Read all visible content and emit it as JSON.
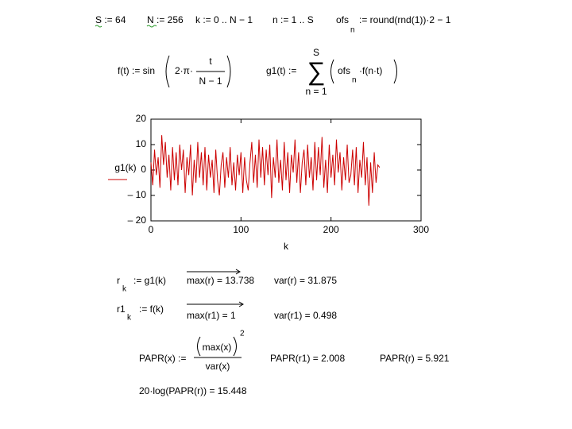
{
  "definitions": {
    "S": "S := 64",
    "N": "N := 256",
    "k": "k := 0 .. N − 1",
    "n": "n := 1 .. S",
    "ofs_lhs": "ofs",
    "ofs_sub": "n",
    "ofs_rhs": ":= round(rnd(1))·2 − 1"
  },
  "f_def": {
    "lhs": "f(t) :=  sin",
    "arg_pre": "2·π·",
    "num": "t",
    "den": "N − 1"
  },
  "g1_def": {
    "lhs": "g1(t) :=",
    "sum_top": "S",
    "sum_sym": "∑",
    "sum_bottom": "n = 1",
    "term": "ofs",
    "term_sub": "n",
    "term_rest": "·f(n·t)"
  },
  "chart_data": {
    "type": "line",
    "xlabel": "k",
    "x": [
      0,
      2,
      4,
      6,
      8,
      10,
      12,
      14,
      16,
      18,
      20,
      22,
      24,
      26,
      28,
      30,
      32,
      34,
      36,
      38,
      40,
      42,
      44,
      46,
      48,
      50,
      52,
      54,
      56,
      58,
      60,
      62,
      64,
      66,
      68,
      70,
      72,
      74,
      76,
      78,
      80,
      82,
      84,
      86,
      88,
      90,
      92,
      94,
      96,
      98,
      100,
      102,
      104,
      106,
      108,
      110,
      112,
      114,
      116,
      118,
      120,
      122,
      124,
      126,
      128,
      130,
      132,
      134,
      136,
      138,
      140,
      142,
      144,
      146,
      148,
      150,
      152,
      154,
      156,
      158,
      160,
      162,
      164,
      166,
      168,
      170,
      172,
      174,
      176,
      178,
      180,
      182,
      184,
      186,
      188,
      190,
      192,
      194,
      196,
      198,
      200,
      202,
      204,
      206,
      208,
      210,
      212,
      214,
      216,
      218,
      220,
      222,
      224,
      226,
      228,
      230,
      232,
      234,
      236,
      238,
      240,
      242,
      244,
      246,
      248,
      250,
      252,
      254
    ],
    "series": [
      {
        "name": "g1(k)",
        "color": "#cc0000",
        "values": [
          3,
          -6,
          8,
          -2,
          5,
          -7,
          13.7,
          2,
          11,
          -3,
          6,
          -8,
          9,
          -4,
          7,
          -6,
          10,
          0,
          8,
          -9,
          5,
          -2,
          10,
          -10,
          4,
          -5,
          11,
          -3,
          7,
          -6,
          9,
          -8,
          6,
          -3,
          4,
          -9,
          8,
          -4,
          -10,
          2,
          7,
          -7,
          5,
          -3,
          9,
          -6,
          3,
          -8,
          6,
          -2,
          7,
          -9,
          5,
          -4,
          -8,
          3,
          11,
          -5,
          6,
          -7,
          12,
          -3,
          9,
          -6,
          8,
          -2,
          10,
          -11,
          5,
          -3,
          12,
          -5,
          4,
          -8,
          11,
          -4,
          7,
          -9,
          6,
          -1,
          12,
          -5,
          7,
          -9,
          3,
          8,
          -6,
          10,
          -3,
          5,
          -8,
          11,
          -4,
          9,
          -2,
          13,
          -7,
          4,
          -9,
          10,
          -3,
          6,
          -6,
          12,
          -1,
          7,
          -8,
          5,
          -4,
          10,
          -5,
          -2,
          8,
          -6,
          9,
          -9,
          4,
          -3,
          11,
          -6,
          5,
          -14,
          3,
          -9,
          7,
          -5,
          2,
          1
        ]
      }
    ],
    "xlim": [
      0,
      300
    ],
    "xticks": [
      0,
      100,
      200,
      300
    ],
    "ylim": [
      -20,
      20
    ],
    "yticks": [
      {
        "value": -20,
        "label": "– 20"
      },
      {
        "value": -10,
        "label": "– 10"
      },
      0,
      10,
      20
    ],
    "grid": false
  },
  "results": {
    "r_lhs": "r",
    "r_sub": "k",
    "r_rhs": ":= g1(k)",
    "max_r": "max(r) = 13.738",
    "var_r": "var(r) = 31.875",
    "r1_lhs": "r1",
    "r1_sub": "k",
    "r1_rhs": ":= f(k)",
    "max_r1": "max(r1) = 1",
    "var_r1": "var(r1) = 0.498"
  },
  "papr": {
    "lhs": "PAPR(x) :=",
    "num": "max(x)",
    "den": "var(x)",
    "exp": "2",
    "papr_r1": "PAPR(r1) = 2.008",
    "papr_r": "PAPR(r) = 5.921",
    "db": "20·log(PAPR(r)) = 15.448"
  }
}
